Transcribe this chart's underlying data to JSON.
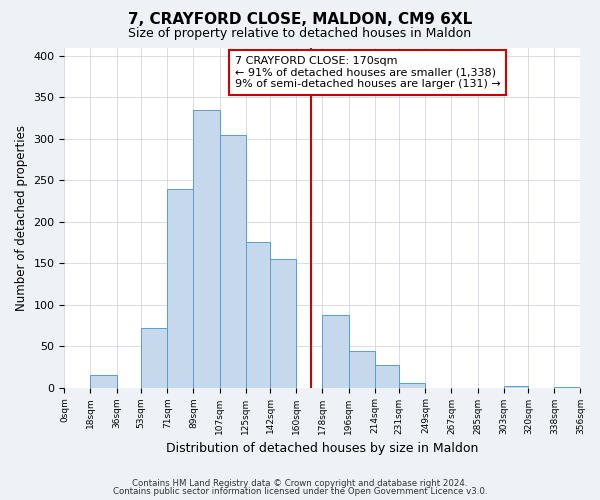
{
  "title": "7, CRAYFORD CLOSE, MALDON, CM9 6XL",
  "subtitle": "Size of property relative to detached houses in Maldon",
  "xlabel": "Distribution of detached houses by size in Maldon",
  "ylabel": "Number of detached properties",
  "bar_edges": [
    0,
    18,
    36,
    53,
    71,
    89,
    107,
    125,
    142,
    160,
    178,
    196,
    214,
    231,
    249,
    267,
    285,
    303,
    320,
    338,
    356
  ],
  "bar_heights": [
    0,
    15,
    0,
    72,
    240,
    335,
    305,
    175,
    155,
    0,
    87,
    44,
    27,
    6,
    0,
    0,
    0,
    2,
    0,
    1
  ],
  "bar_color": "#c6d9ec",
  "bar_edge_color": "#5b9bd5",
  "vline_x": 170,
  "vline_color": "#cc0000",
  "annotation_line1": "7 CRAYFORD CLOSE: 170sqm",
  "annotation_line2": "← 91% of detached houses are smaller (1,338)",
  "annotation_line3": "9% of semi-detached houses are larger (131) →",
  "ylim": [
    0,
    410
  ],
  "tick_labels": [
    "0sqm",
    "18sqm",
    "36sqm",
    "53sqm",
    "71sqm",
    "89sqm",
    "107sqm",
    "125sqm",
    "142sqm",
    "160sqm",
    "178sqm",
    "196sqm",
    "214sqm",
    "231sqm",
    "249sqm",
    "267sqm",
    "285sqm",
    "303sqm",
    "320sqm",
    "338sqm",
    "356sqm"
  ],
  "footnote1": "Contains HM Land Registry data © Crown copyright and database right 2024.",
  "footnote2": "Contains public sector information licensed under the Open Government Licence v3.0.",
  "background_color": "#eef2f6",
  "plot_bg_color": "#ffffff",
  "grid_color": "#c8d0d8"
}
